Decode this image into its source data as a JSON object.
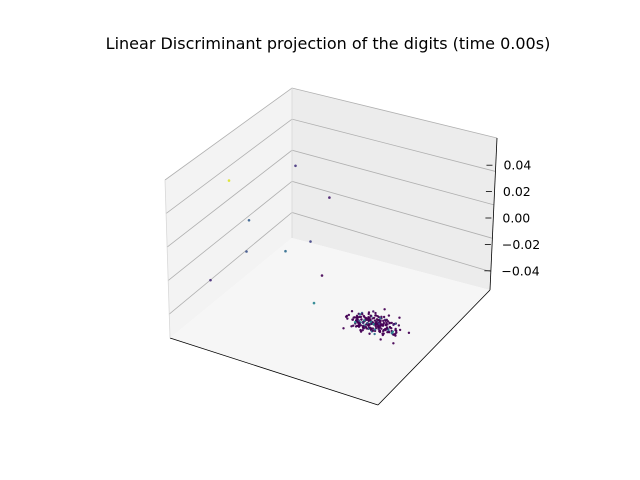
{
  "chart_data": {
    "type": "scatter",
    "projection": "3d",
    "title": "Linear Discriminant projection of the digits (time 0.00s)",
    "xlabel": "",
    "ylabel": "",
    "zlabel": "",
    "z_ticks": [
      "0.04",
      "0.02",
      "0.00",
      "−0.02",
      "−0.04"
    ],
    "x_ticks": [],
    "y_ticks": [],
    "grid": true,
    "legend": "none",
    "colormap": "viridis",
    "marker_size": "small",
    "note_colors": {
      "dominant": "#440154",
      "mid": "#3b528b",
      "high": "#fde725"
    },
    "points": [
      {
        "x": -0.3,
        "y": 0.45,
        "z": -0.03,
        "c": 0.15
      },
      {
        "x": -0.12,
        "y": 0.3,
        "z": -0.02,
        "c": 0.08
      },
      {
        "x": -0.4,
        "y": 0.1,
        "z": 0.04,
        "c": 0.95
      },
      {
        "x": -0.25,
        "y": -0.1,
        "z": 0.05,
        "c": 0.3
      },
      {
        "x": -0.2,
        "y": -0.25,
        "z": 0.05,
        "c": 0.25
      },
      {
        "x": -0.1,
        "y": -0.15,
        "z": 0.03,
        "c": 0.35
      },
      {
        "x": -0.05,
        "y": -0.05,
        "z": 0.02,
        "c": 0.2
      },
      {
        "x": -0.25,
        "y": -0.45,
        "z": 0.06,
        "c": 0.12
      },
      {
        "x": 0.1,
        "y": -0.4,
        "z": 0.04,
        "c": 0.45
      },
      {
        "x": 0.05,
        "y": -0.2,
        "z": 0.02,
        "c": 0.0
      }
    ],
    "cluster": {
      "center": {
        "x": 0.28,
        "y": -0.32,
        "z": 0.0
      },
      "count": 220,
      "spread": 0.06
    }
  }
}
